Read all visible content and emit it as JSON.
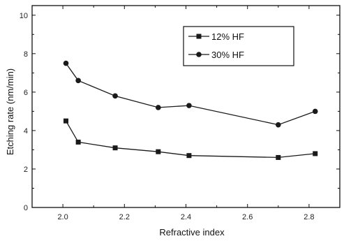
{
  "chart_data": {
    "type": "line",
    "xlabel": "Refractive index",
    "ylabel": "Etching rate (nm/min)",
    "xlim": [
      1.9,
      2.9
    ],
    "ylim": [
      0,
      10.5
    ],
    "xticks": [
      "2.0",
      "2.2",
      "2.4",
      "2.6",
      "2.8"
    ],
    "yticks": [
      "0",
      "2",
      "4",
      "6",
      "8",
      "10"
    ],
    "grid": false,
    "legend_position": "top-right",
    "series": [
      {
        "name": "12% HF",
        "marker": "square",
        "x": [
          2.01,
          2.05,
          2.17,
          2.31,
          2.41,
          2.7,
          2.82
        ],
        "y": [
          4.5,
          3.4,
          3.1,
          2.9,
          2.7,
          2.6,
          2.8
        ]
      },
      {
        "name": "30% HF",
        "marker": "circle",
        "x": [
          2.01,
          2.05,
          2.17,
          2.31,
          2.41,
          2.7,
          2.82
        ],
        "y": [
          7.5,
          6.6,
          5.8,
          5.2,
          5.3,
          4.3,
          5.0
        ]
      }
    ]
  }
}
